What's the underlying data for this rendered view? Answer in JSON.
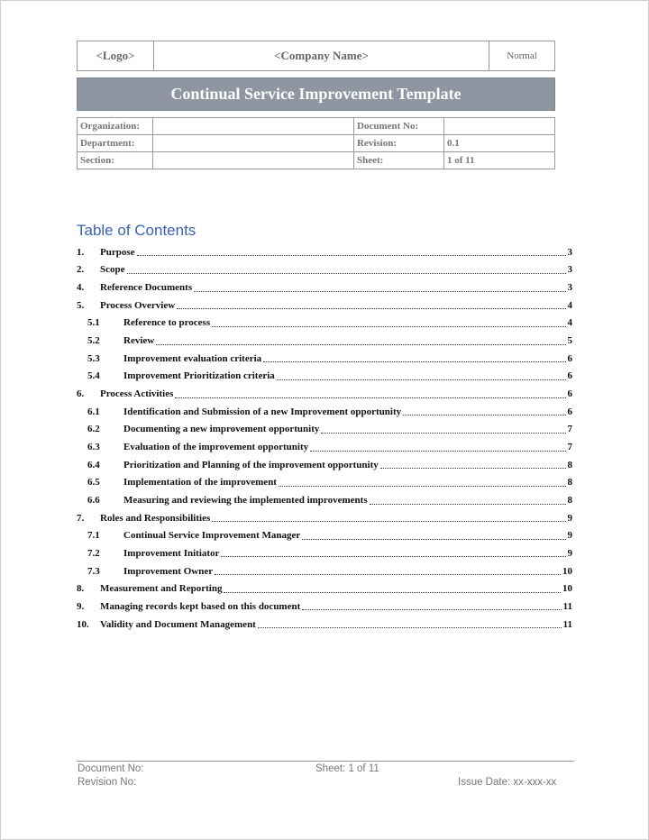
{
  "header": {
    "logo": "<Logo>",
    "company": "<Company Name>",
    "classification": "Normal",
    "title": "Continual Service Improvement Template"
  },
  "info": {
    "organization_label": "Organization:",
    "organization_value": "",
    "document_no_label": "Document No:",
    "document_no_value": "",
    "department_label": "Department:",
    "department_value": "",
    "revision_label": "Revision:",
    "revision_value": "0.1",
    "section_label": "Section:",
    "section_value": "",
    "sheet_label": "Sheet:",
    "sheet_value": "1 of 11"
  },
  "toc": {
    "title": "Table of Contents",
    "entries": [
      {
        "num": "1.",
        "text": "Purpose",
        "page": "3",
        "level": 1
      },
      {
        "num": "2.",
        "text": "Scope",
        "page": "3",
        "level": 1
      },
      {
        "num": "4.",
        "text": "Reference Documents",
        "page": "3",
        "level": 1
      },
      {
        "num": "5.",
        "text": "Process Overview",
        "page": "4",
        "level": 1
      },
      {
        "num": "5.1",
        "text": "Reference to process",
        "page": "4",
        "level": 2
      },
      {
        "num": "5.2",
        "text": "Review",
        "page": "5",
        "level": 2
      },
      {
        "num": "5.3",
        "text": "Improvement evaluation criteria",
        "page": "6",
        "level": 2
      },
      {
        "num": "5.4",
        "text": "Improvement Prioritization criteria",
        "page": "6",
        "level": 2
      },
      {
        "num": "6.",
        "text": "Process Activities",
        "page": "6",
        "level": 1
      },
      {
        "num": "6.1",
        "text": "Identification and Submission of a new Improvement opportunity",
        "page": "6",
        "level": 2
      },
      {
        "num": "6.2",
        "text": "Documenting a new improvement opportunity",
        "page": "7",
        "level": 2
      },
      {
        "num": "6.3",
        "text": "Evaluation of the improvement opportunity",
        "page": "7",
        "level": 2
      },
      {
        "num": "6.4",
        "text": "Prioritization and Planning of the improvement opportunity",
        "page": "8",
        "level": 2
      },
      {
        "num": "6.5",
        "text": "Implementation of the improvement",
        "page": "8",
        "level": 2
      },
      {
        "num": "6.6",
        "text": "Measuring and reviewing the implemented improvements",
        "page": "8",
        "level": 2
      },
      {
        "num": "7.",
        "text": "Roles and Responsibilities",
        "page": "9",
        "level": 1
      },
      {
        "num": "7.1",
        "text": "Continual Service Improvement Manager",
        "page": "9",
        "level": 2
      },
      {
        "num": "7.2",
        "text": "Improvement Initiator",
        "page": "9",
        "level": 2
      },
      {
        "num": "7.3",
        "text": "Improvement Owner",
        "page": "10",
        "level": 2
      },
      {
        "num": "8.",
        "text": "Measurement and Reporting",
        "page": "10",
        "level": 1
      },
      {
        "num": "9.",
        "text": "Managing records kept based on this document",
        "page": "11",
        "level": 1
      },
      {
        "num": "10.",
        "text": "Validity and Document Management",
        "page": "11",
        "level": 1
      }
    ]
  },
  "footer": {
    "document_no": "Document No:",
    "revision_no": "Revision No:",
    "sheet": "Sheet: 1 of 11",
    "issue_date": "Issue Date: xx-xxx-xx"
  }
}
